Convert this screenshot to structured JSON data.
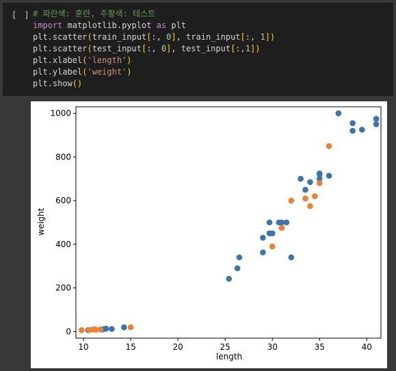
{
  "cell": {
    "run_indicator": "[ ]",
    "code": {
      "comment": "# 파란색: 훈련, 주황색: 테스트",
      "import_kw": "import",
      "import_module": "matplotlib.pyplot",
      "as_kw": "as",
      "alias": "plt",
      "line2": {
        "fn": "plt.scatter",
        "ob": "(",
        "a1": "train_input",
        "i1o": "[",
        "i1": ":, ",
        "i1n": "0",
        "i1c": "]",
        "sep": ", ",
        "a2": "train_input",
        "i2o": "[",
        "i2": ":, ",
        "i2n": "1",
        "i2c": "]",
        "cb": ")"
      },
      "line3": {
        "fn": "plt.scatter",
        "ob": "(",
        "a1": "test_input",
        "i1o": "[",
        "i1": ":, ",
        "i1n": "0",
        "i1c": "]",
        "sep": ", ",
        "a2": "test_input",
        "i2o": "[",
        "i2": ":,",
        "i2n": "1",
        "i2c": "]",
        "cb": ")"
      },
      "line4": {
        "fn": "plt.xlabel",
        "ob": "(",
        "arg": "'length'",
        "cb": ")"
      },
      "line5": {
        "fn": "plt.ylabel",
        "ob": "(",
        "arg": "'weight'",
        "cb": ")"
      },
      "line6": {
        "fn": "plt.show",
        "ob": "(",
        "cb": ")"
      }
    },
    "colors": {
      "train": "#3a75b0",
      "test": "#f08030",
      "editor_bg": "#1e1e1e",
      "page_bg": "#383838"
    }
  },
  "chart_data": {
    "type": "scatter",
    "xlabel": "length",
    "ylabel": "weight",
    "xlim": [
      9.2,
      41.5
    ],
    "ylim": [
      -30,
      1030
    ],
    "xticks": [
      10,
      15,
      20,
      25,
      30,
      35,
      40
    ],
    "yticks": [
      0,
      200,
      400,
      600,
      800,
      1000
    ],
    "grid": false,
    "series": [
      {
        "color": "#3a75b0",
        "points": [
          [
            25.4,
            242
          ],
          [
            26.3,
            290
          ],
          [
            26.5,
            340
          ],
          [
            29.0,
            363
          ],
          [
            29.0,
            430
          ],
          [
            29.7,
            450
          ],
          [
            29.7,
            500
          ],
          [
            30.0,
            450
          ],
          [
            30.7,
            500
          ],
          [
            31.0,
            475
          ],
          [
            31.0,
            500
          ],
          [
            31.5,
            500
          ],
          [
            32.0,
            340
          ],
          [
            33.0,
            700
          ],
          [
            33.5,
            650
          ],
          [
            34.0,
            685
          ],
          [
            35.0,
            700
          ],
          [
            35.0,
            725
          ],
          [
            35.0,
            720
          ],
          [
            36.0,
            714
          ],
          [
            37.0,
            1000
          ],
          [
            38.5,
            920
          ],
          [
            38.5,
            955
          ],
          [
            39.5,
            925
          ],
          [
            41.0,
            975
          ],
          [
            41.0,
            950
          ],
          [
            10.5,
            6.7
          ],
          [
            10.6,
            7.5
          ],
          [
            11.2,
            9.8
          ],
          [
            11.8,
            9.9
          ],
          [
            12.0,
            9.8
          ],
          [
            12.4,
            13.4
          ],
          [
            12.2,
            12.2
          ],
          [
            13.0,
            12.2
          ],
          [
            14.3,
            19.7
          ]
        ]
      },
      {
        "color": "#f08030",
        "points": [
          [
            9.8,
            6.7
          ],
          [
            10.6,
            7.0
          ],
          [
            11.0,
            9.7
          ],
          [
            11.3,
            8.7
          ],
          [
            11.8,
            9.9
          ],
          [
            15.0,
            19.9
          ],
          [
            30.0,
            390
          ],
          [
            31.0,
            475
          ],
          [
            32.0,
            600
          ],
          [
            33.5,
            610
          ],
          [
            34.0,
            575
          ],
          [
            34.5,
            620
          ],
          [
            35.0,
            680
          ],
          [
            36.0,
            850
          ]
        ]
      }
    ]
  }
}
